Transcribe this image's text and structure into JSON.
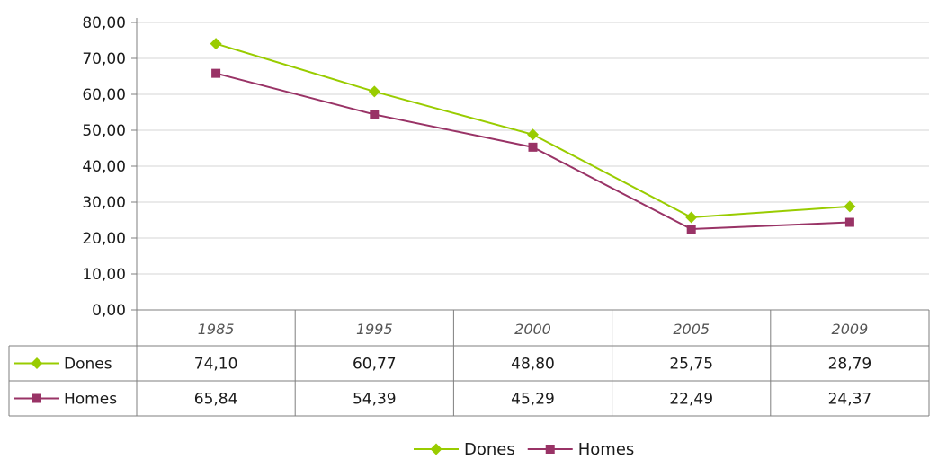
{
  "chart_data": {
    "type": "line",
    "categories": [
      "1985",
      "1995",
      "2000",
      "2005",
      "2009"
    ],
    "series": [
      {
        "name": "Dones",
        "values": [
          74.1,
          60.77,
          48.8,
          25.75,
          28.79
        ],
        "labels": [
          "74,10",
          "60,77",
          "48,80",
          "25,75",
          "28,79"
        ],
        "color": "#99cc00",
        "marker": "diamond"
      },
      {
        "name": "Homes",
        "values": [
          65.84,
          54.39,
          45.29,
          22.49,
          24.37
        ],
        "labels": [
          "65,84",
          "54,39",
          "45,29",
          "22,49",
          "24,37"
        ],
        "color": "#993366",
        "marker": "square"
      }
    ],
    "yticks": [
      "0,00",
      "10,00",
      "20,00",
      "30,00",
      "40,00",
      "50,00",
      "60,00",
      "70,00",
      "80,00"
    ],
    "ylim": [
      0,
      80
    ],
    "grid": true,
    "data_table": true,
    "legend": "bottom-center"
  }
}
